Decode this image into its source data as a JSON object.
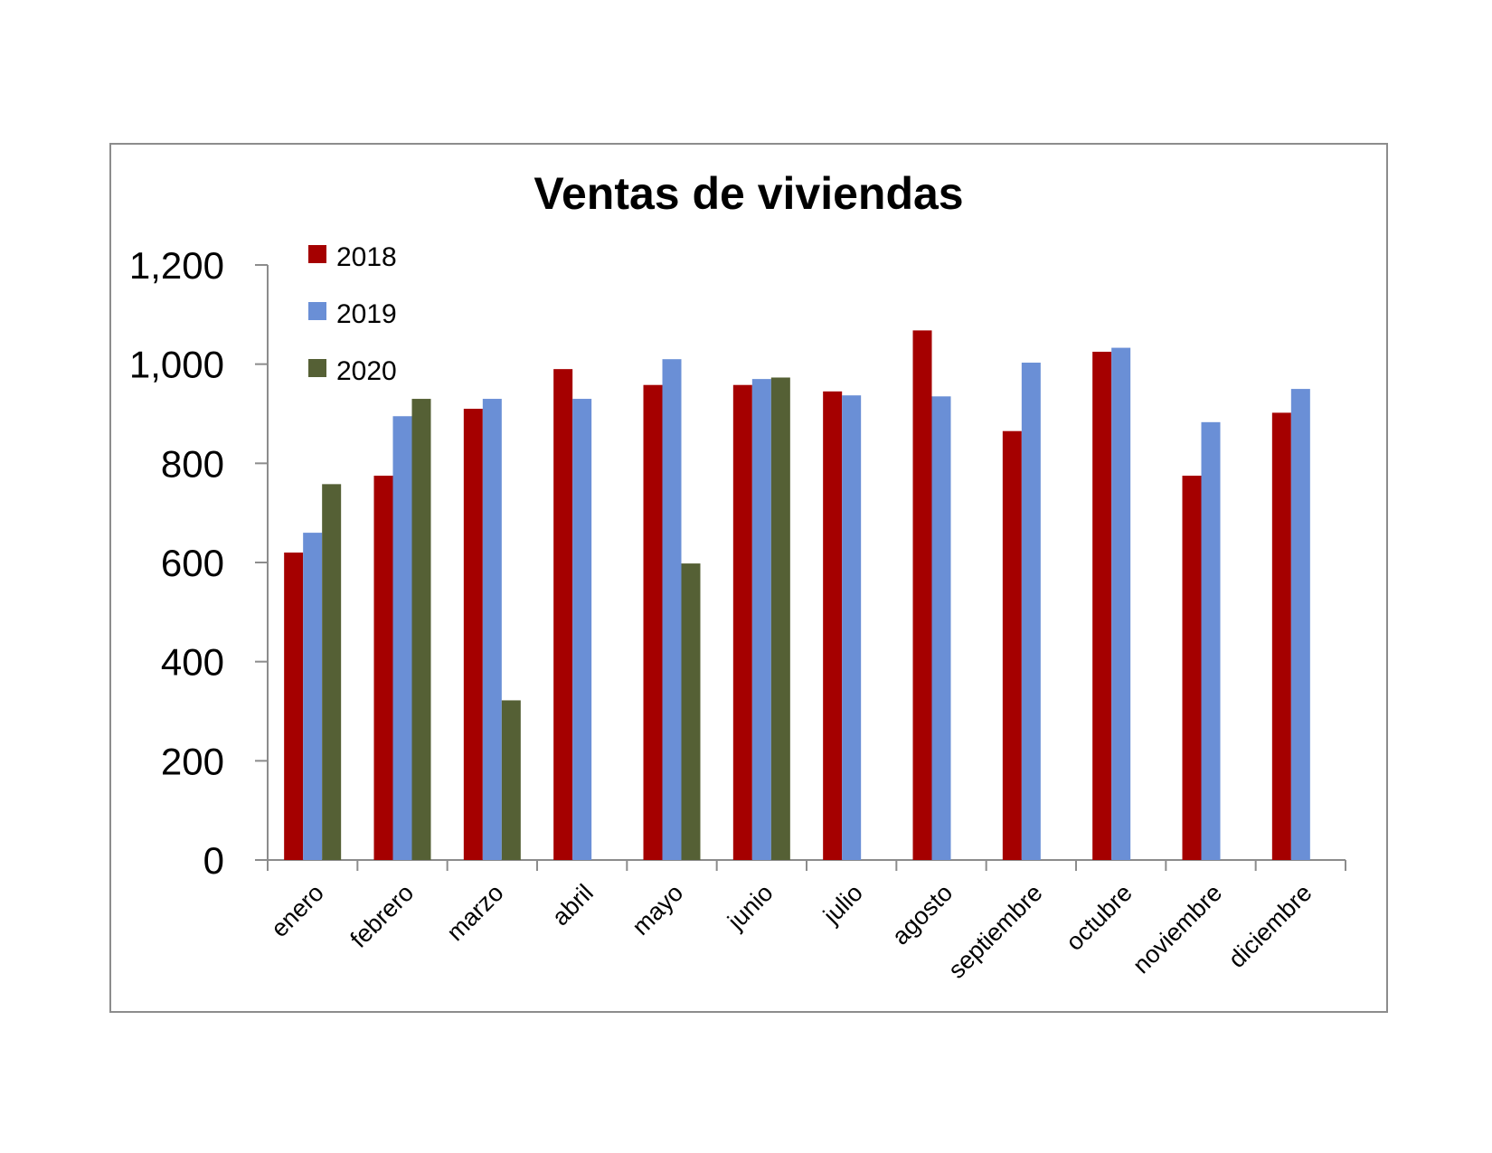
{
  "chart_data": {
    "type": "bar",
    "title": "Ventas de viviendas",
    "xlabel": "",
    "ylabel": "",
    "categories": [
      "enero",
      "febrero",
      "marzo",
      "abril",
      "mayo",
      "junio",
      "julio",
      "agosto",
      "septiembre",
      "octubre",
      "noviembre",
      "diciembre"
    ],
    "series": [
      {
        "name": "2018",
        "color": "#a50000",
        "values": [
          620,
          775,
          910,
          990,
          958,
          958,
          945,
          1068,
          865,
          1025,
          775,
          902
        ]
      },
      {
        "name": "2019",
        "color": "#6a8fd6",
        "values": [
          660,
          895,
          930,
          930,
          1010,
          970,
          937,
          935,
          1003,
          1033,
          883,
          950
        ]
      },
      {
        "name": "2020",
        "color": "#556035",
        "values": [
          758,
          930,
          322,
          null,
          598,
          973,
          null,
          null,
          null,
          null,
          null,
          null
        ]
      }
    ],
    "ylim": [
      0,
      1200
    ],
    "yticks": [
      0,
      200,
      400,
      600,
      800,
      1000,
      1200
    ],
    "ytick_labels": [
      "0",
      "200",
      "400",
      "600",
      "800",
      "1,000",
      "1,200"
    ],
    "grid": false,
    "legend_position": "top-left"
  }
}
